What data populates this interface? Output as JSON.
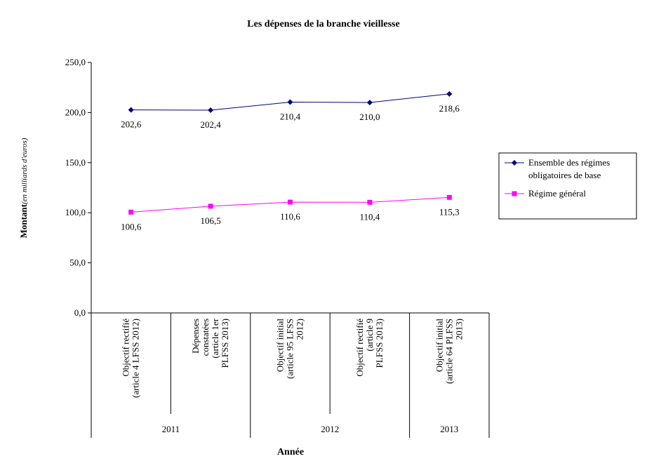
{
  "chart_data": {
    "type": "line",
    "title": "Les dépenses de la branche vieillesse",
    "ylabel_main": "Montant",
    "ylabel_sub": "(en milliards d'euros)",
    "xlabel": "Année",
    "ylim": [
      0,
      250
    ],
    "yticks": [
      "0,0",
      "50,0",
      "100,0",
      "150,0",
      "200,0",
      "250,0"
    ],
    "grid": false,
    "legend_position": "right",
    "categories": [
      [
        "Objectif rectifié",
        "(article 4 LFSS 2012)"
      ],
      [
        "Dépenses",
        "constatées",
        "(article 1er",
        "PLFSS 2013)"
      ],
      [
        "Objectif initial",
        "(article 95 LFSS",
        "2012)"
      ],
      [
        "Objectif rectifié",
        "(article 9",
        "PLFSS 2013)"
      ],
      [
        "Objectif initial",
        "(article 64 PLFSS",
        "2013)"
      ]
    ],
    "years": [
      {
        "label": "2011",
        "span": 2
      },
      {
        "label": "2012",
        "span": 2
      },
      {
        "label": "2013",
        "span": 1
      }
    ],
    "series": [
      {
        "name": "Ensemble des régimes obligatoires de base",
        "name_lines": [
          "Ensemble des régimes",
          "obligatoires de base"
        ],
        "color": "#000080",
        "marker": "diamond",
        "values": [
          202.6,
          202.4,
          210.4,
          210.0,
          218.6
        ],
        "labels": [
          "202,6",
          "202,4",
          "210,4",
          "210,0",
          "218,6"
        ]
      },
      {
        "name": "Régime général",
        "name_lines": [
          "Régime général"
        ],
        "color": "#ff00ff",
        "marker": "square",
        "values": [
          100.6,
          106.5,
          110.6,
          110.4,
          115.3
        ],
        "labels": [
          "100,6",
          "106,5",
          "110,6",
          "110,4",
          "115,3"
        ]
      }
    ]
  }
}
